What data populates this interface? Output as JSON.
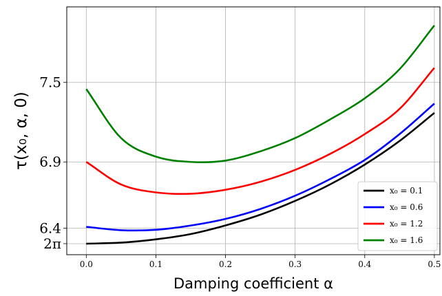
{
  "chart_data": {
    "type": "line",
    "title": "",
    "xlabel": "Damping coefficient α",
    "ylabel": "τ(x₀, α, 0)",
    "xlim": [
      -0.028,
      0.508
    ],
    "ylim": [
      6.2,
      8.07
    ],
    "x_ticks": [
      {
        "value": 0.0,
        "label": "0.0"
      },
      {
        "value": 0.1,
        "label": "0.1"
      },
      {
        "value": 0.2,
        "label": "0.2"
      },
      {
        "value": 0.3,
        "label": "0.3"
      },
      {
        "value": 0.4,
        "label": "0.4"
      },
      {
        "value": 0.5,
        "label": "0.5"
      }
    ],
    "y_ticks": [
      {
        "value": 6.2832,
        "label": "2π"
      },
      {
        "value": 6.4,
        "label": "6.4"
      },
      {
        "value": 6.9,
        "label": "6.9"
      },
      {
        "value": 7.5,
        "label": "7.5"
      }
    ],
    "grid": true,
    "legend_position": "lower-right",
    "x": [
      0.0,
      0.05,
      0.1,
      0.15,
      0.2,
      0.25,
      0.3,
      0.35,
      0.4,
      0.45,
      0.5
    ],
    "series": [
      {
        "name": "x₀ = 0.1",
        "color": "#000000",
        "values": [
          6.283,
          6.291,
          6.316,
          6.356,
          6.421,
          6.502,
          6.606,
          6.73,
          6.88,
          7.058,
          7.27
        ]
      },
      {
        "name": "x₀ = 0.6",
        "color": "#0000ff",
        "values": [
          6.41,
          6.385,
          6.388,
          6.42,
          6.47,
          6.545,
          6.645,
          6.77,
          6.915,
          7.11,
          7.34
        ]
      },
      {
        "name": "x₀ = 1.2",
        "color": "#ff0000",
        "values": [
          6.9,
          6.73,
          6.67,
          6.66,
          6.69,
          6.75,
          6.84,
          6.96,
          7.11,
          7.3,
          7.61
        ]
      },
      {
        "name": "x₀ = 1.6",
        "color": "#008000",
        "values": [
          7.45,
          7.08,
          6.94,
          6.9,
          6.91,
          6.98,
          7.08,
          7.22,
          7.38,
          7.6,
          7.93
        ]
      }
    ]
  }
}
